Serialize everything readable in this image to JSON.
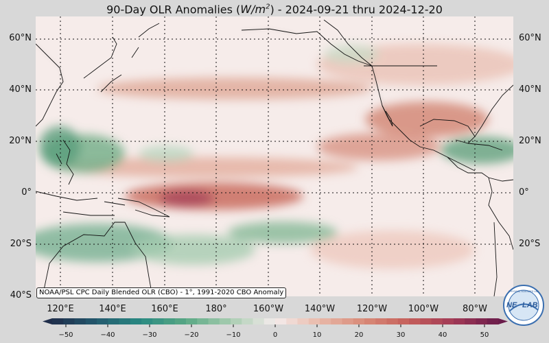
{
  "title": {
    "prefix": "90-Day OLR Anomalies (",
    "units_base": "W/m",
    "units_exp": "2",
    "suffix": ") - 2024-09-21 thru 2024-12-20"
  },
  "lat_labels": [
    "60°N",
    "40°N",
    "20°N",
    "0°",
    "20°S",
    "40°S"
  ],
  "lon_labels": [
    "120°E",
    "140°E",
    "160°E",
    "180°",
    "160°W",
    "140°W",
    "120°W",
    "100°W",
    "80°W"
  ],
  "credit": "NOAA/PSL CPC Daily Blended OLR (CBO) - 1°, 1991-2020 CBO Anomaly",
  "colorbar": {
    "ticks": [
      "−50",
      "−40",
      "−30",
      "−20",
      "−10",
      "0",
      "10",
      "20",
      "30",
      "40",
      "50"
    ],
    "colors": [
      "#1f2d4a",
      "#245a6e",
      "#2a8a82",
      "#5aa884",
      "#a8ccb0",
      "#f4ecec",
      "#e8b8a8",
      "#d88a78",
      "#c45e5a",
      "#a23a56",
      "#6a1c4a"
    ]
  },
  "logo": {
    "text_left": "NE",
    "text_right": "LAB",
    "text_top": "PHYSICAL SCIENCES LAB"
  }
}
